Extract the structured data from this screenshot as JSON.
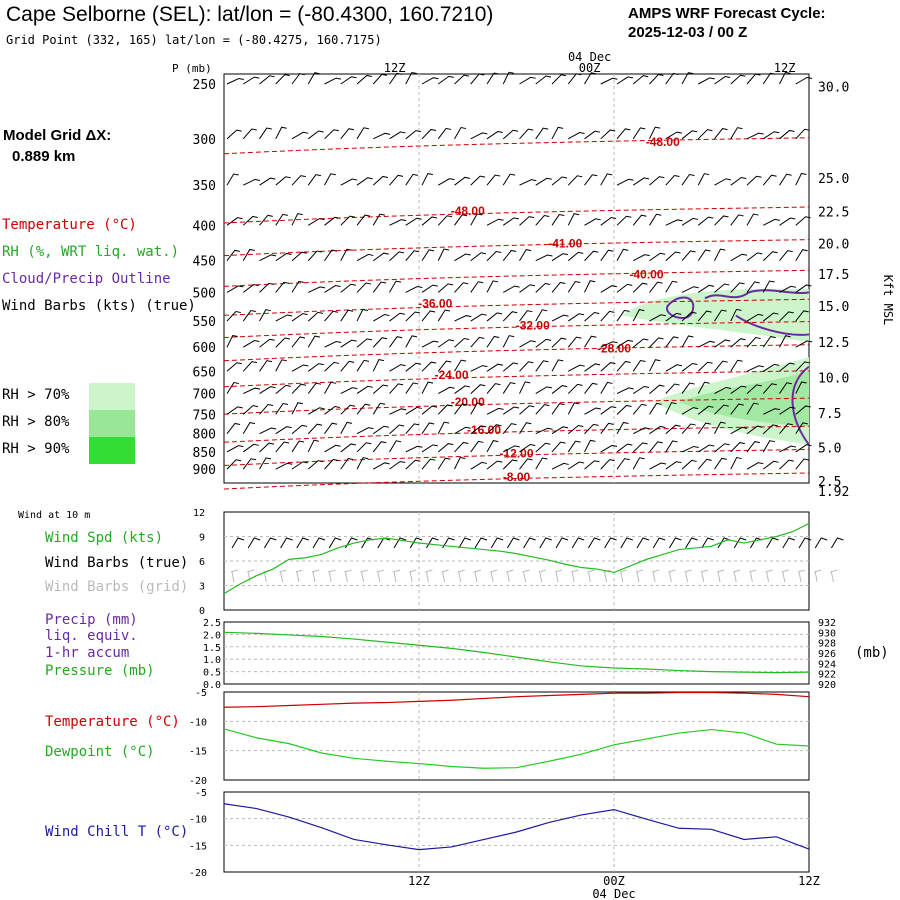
{
  "header": {
    "title": "Cape Selborne (SEL):  lat/lon = (-80.4300, 160.7210)",
    "subtitle": "Grid Point (332, 165) lat/lon = (-80.4275, 160.7175)",
    "cycle_line1": "AMPS WRF Forecast Cycle:",
    "cycle_line2": "2025-12-03 / 00  Z"
  },
  "time_axis": {
    "top_labels": [
      "12Z",
      "00Z",
      "12Z"
    ],
    "date_label": "04 Dec",
    "bottom_labels": [
      "12Z",
      "00Z"
    ],
    "bottom_date": "04 Dec"
  },
  "left_legend": {
    "model_grid": "Model Grid ΔX:",
    "model_grid_value": "0.889 km",
    "temperature": "Temperature (°C)",
    "rh": "RH (%, WRT liq. wat.)",
    "cloud": "Cloud/Precip Outline",
    "wind_barbs": "Wind Barbs (kts) (true)",
    "rh70": "RH > 70%",
    "rh80": "RH > 80%",
    "rh90": "RH > 90%"
  },
  "colors": {
    "temperature": "#cc0000",
    "rh70": "#ccf5cc",
    "rh80": "#99e699",
    "rh90": "#33dd33",
    "cloud": "#6a2aa0",
    "wind_speed": "#22bb22",
    "grid_barbs": "#bbbbbb",
    "precip": "#6a2aa0",
    "surface_temp": "#cc0000",
    "dewpoint": "#22cc22",
    "wind_chill": "#1a1aa0"
  },
  "panel_labels": {
    "wind_title": "Wind at 10 m",
    "wind_spd": "Wind Spd (kts)",
    "wind_barbs_true": "Wind Barbs (true)",
    "wind_barbs_grid": "Wind Barbs (grid)",
    "precip": "Precip (mm)",
    "precip2": "liq. equiv.",
    "precip3": "1-hr accum",
    "pressure": "Pressure (mb)",
    "pressure_unit": "(mb)",
    "temperature": "Temperature (°C)",
    "dewpoint": "Dewpoint (°C)",
    "wind_chill": "Wind Chill T (°C)"
  },
  "chart_data": [
    {
      "type": "line",
      "name": "upper-air cross section",
      "y_axis_title": "P (mb)",
      "pressure_levels": [
        250,
        300,
        350,
        400,
        450,
        500,
        550,
        600,
        650,
        700,
        750,
        800,
        850,
        900
      ],
      "height_axis_title": "Kft MSL",
      "height_labels": [
        "30.0",
        "25.0",
        "22.5",
        "20.0",
        "17.5",
        "15.0",
        "12.5",
        "10.0",
        "7.5",
        "5.0",
        "2.5",
        "1.92"
      ],
      "height_label_pressures": [
        252,
        342,
        382,
        425,
        470,
        523,
        590,
        664,
        747,
        837,
        936,
        968
      ],
      "isotherm_labels": [
        {
          "text": "-48.00",
          "x": 27,
          "p": 305
        },
        {
          "text": "-48.00",
          "x": 15,
          "p": 384
        },
        {
          "text": "-41.00",
          "x": 21,
          "p": 428
        },
        {
          "text": "-40.00",
          "x": 26,
          "p": 474
        },
        {
          "text": "-36.00",
          "x": 13,
          "p": 522
        },
        {
          "text": "-32.00",
          "x": 19,
          "p": 562
        },
        {
          "text": "-28.00",
          "x": 24,
          "p": 607
        },
        {
          "text": "-24.00",
          "x": 14,
          "p": 662
        },
        {
          "text": "-20.00",
          "x": 15,
          "p": 725
        },
        {
          "text": "-16.00",
          "x": 16,
          "p": 796
        },
        {
          "text": "-12.00",
          "x": 18,
          "p": 860
        },
        {
          "text": "-8.00",
          "x": 18,
          "p": 930
        }
      ],
      "x_range": [
        0,
        36
      ]
    },
    {
      "type": "line",
      "name": "wind speed 10 m",
      "ylim": [
        0,
        12
      ],
      "y_ticks": [
        0,
        3,
        6,
        9,
        12
      ],
      "x": [
        0,
        1,
        2,
        3,
        4,
        5,
        6,
        7,
        8,
        9,
        10,
        11,
        12,
        13,
        14,
        15,
        16,
        17,
        18,
        19,
        20,
        21,
        22,
        23,
        24,
        25,
        26,
        27,
        28,
        29,
        30,
        31,
        32,
        33,
        34,
        35,
        36
      ],
      "values": [
        2.0,
        3.2,
        4.2,
        5.0,
        6.2,
        6.4,
        6.8,
        7.6,
        8.2,
        8.6,
        8.8,
        8.5,
        8.2,
        8.0,
        7.8,
        7.6,
        7.4,
        7.2,
        6.9,
        6.5,
        6.1,
        5.6,
        5.2,
        5.0,
        4.6,
        5.4,
        6.2,
        6.8,
        7.4,
        7.6,
        7.8,
        8.6,
        8.2,
        8.6,
        9.0,
        9.6,
        10.6
      ]
    },
    {
      "type": "line",
      "name": "precip and pressure",
      "precip_ylim": [
        0,
        2.5
      ],
      "precip_ticks": [
        "0.0",
        "0.5",
        "1.0",
        "1.5",
        "2.0",
        "2.5"
      ],
      "pressure_ylim": [
        920,
        932
      ],
      "pressure_ticks": [
        "920",
        "922",
        "924",
        "926",
        "928",
        "930",
        "932"
      ],
      "x": [
        0,
        2,
        4,
        6,
        8,
        10,
        12,
        14,
        16,
        18,
        20,
        22,
        24,
        26,
        28,
        30,
        32,
        34,
        36
      ],
      "pressure": [
        930.0,
        929.8,
        929.5,
        929.2,
        928.7,
        928.1,
        927.5,
        926.9,
        926.1,
        925.2,
        924.3,
        923.5,
        923.1,
        922.9,
        922.6,
        922.4,
        922.3,
        922.2,
        922.3
      ]
    },
    {
      "type": "line",
      "name": "temperature and dewpoint",
      "ylim": [
        -20,
        -5
      ],
      "y_ticks": [
        -5,
        -10,
        -15,
        -20
      ],
      "x": [
        0,
        2,
        4,
        6,
        8,
        10,
        12,
        14,
        16,
        18,
        20,
        22,
        24,
        26,
        28,
        30,
        32,
        34,
        36
      ],
      "temperature": [
        -7.6,
        -7.5,
        -7.3,
        -7.1,
        -6.9,
        -6.8,
        -6.6,
        -6.4,
        -6.1,
        -5.8,
        -5.6,
        -5.4,
        -5.2,
        -5.2,
        -5.1,
        -5.1,
        -5.2,
        -5.4,
        -5.8
      ],
      "dewpoint": [
        -11.3,
        -12.8,
        -13.8,
        -15.4,
        -16.3,
        -16.8,
        -17.2,
        -17.7,
        -18.0,
        -17.9,
        -16.8,
        -15.6,
        -14.0,
        -13.0,
        -12.0,
        -11.4,
        -12.0,
        -13.9,
        -14.2
      ]
    },
    {
      "type": "line",
      "name": "wind chill",
      "ylim": [
        -20,
        -5
      ],
      "y_ticks": [
        -5,
        -10,
        -15,
        -20
      ],
      "x": [
        0,
        2,
        4,
        6,
        8,
        10,
        12,
        14,
        16,
        18,
        20,
        22,
        24,
        26,
        28,
        30,
        32,
        34,
        36
      ],
      "wind_chill": [
        -7.2,
        -8.1,
        -9.7,
        -11.7,
        -13.9,
        -14.9,
        -15.8,
        -15.3,
        -13.9,
        -12.5,
        -10.7,
        -9.3,
        -8.3,
        -10.1,
        -11.8,
        -12.0,
        -13.9,
        -13.4,
        -15.7
      ]
    }
  ]
}
